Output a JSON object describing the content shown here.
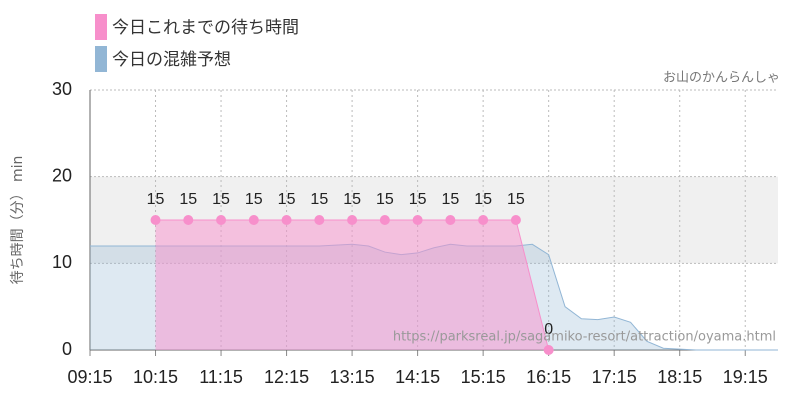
{
  "chart_data": {
    "type": "area",
    "watermark": "お山のかんらんしゃ",
    "source": "https://parksreal.jp/sagamiko-resort/attraction/oyama.html",
    "ylabel": "待ち時間（分） min",
    "ylim": [
      0,
      30
    ],
    "yticks": [
      0,
      10,
      20,
      30
    ],
    "band": [
      10,
      20
    ],
    "grid": true,
    "xlim": [
      "09:15",
      "19:45"
    ],
    "xticks": [
      "09:15",
      "10:15",
      "11:15",
      "12:15",
      "13:15",
      "14:15",
      "15:15",
      "16:15",
      "17:15",
      "18:15",
      "19:15"
    ],
    "series": [
      {
        "name": "今日これまでの待ち時間",
        "color": "#f78fcb",
        "x": [
          "10:15",
          "10:45",
          "11:15",
          "11:45",
          "12:15",
          "12:45",
          "13:15",
          "13:45",
          "14:15",
          "14:45",
          "15:15",
          "15:45",
          "16:15"
        ],
        "values": [
          15,
          15,
          15,
          15,
          15,
          15,
          15,
          15,
          15,
          15,
          15,
          15,
          0
        ]
      },
      {
        "name": "今日の混雑予想",
        "color": "#92b6d5",
        "x": [
          "09:15",
          "09:45",
          "10:15",
          "10:45",
          "11:15",
          "11:45",
          "12:15",
          "12:45",
          "13:15",
          "13:30",
          "13:45",
          "14:00",
          "14:15",
          "14:30",
          "14:45",
          "15:00",
          "15:15",
          "15:30",
          "15:45",
          "16:00",
          "16:15",
          "16:30",
          "16:45",
          "17:00",
          "17:15",
          "17:30",
          "17:45",
          "18:00",
          "18:30",
          "19:00",
          "19:45"
        ],
        "values": [
          12,
          12,
          12,
          12,
          12,
          12,
          12,
          12,
          12.2,
          12,
          11.3,
          11,
          11.2,
          11.8,
          12.2,
          12,
          12,
          12,
          12,
          12.2,
          11,
          5,
          3.6,
          3.5,
          3.8,
          3.2,
          1,
          0.2,
          0,
          0,
          0
        ]
      }
    ]
  }
}
